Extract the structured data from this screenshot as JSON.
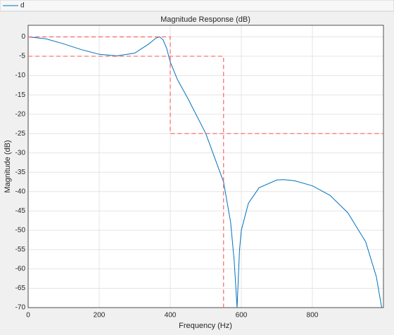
{
  "chart_data": {
    "type": "line",
    "title": "Magnitude Response (dB)",
    "x_label": "Frequency (Hz)",
    "y_label": "Magnitude (dB)",
    "series": [
      {
        "name": "d",
        "color": "#0072bd",
        "line_style": "solid",
        "x": [
          0,
          50,
          100,
          150,
          200,
          250,
          300,
          340,
          360,
          370,
          380,
          390,
          400,
          420,
          450,
          500,
          550,
          570,
          580,
          588,
          595,
          600,
          620,
          650,
          700,
          720,
          750,
          800,
          850,
          900,
          950,
          980,
          995
        ],
        "values": [
          0,
          -0.5,
          -1.8,
          -3.3,
          -4.5,
          -4.9,
          -4.2,
          -1.8,
          -0.3,
          0,
          -0.8,
          -3,
          -6.5,
          -11,
          -16,
          -25,
          -37.5,
          -48,
          -58,
          -70,
          -55,
          -50,
          -43,
          -39,
          -37,
          -36.9,
          -37.2,
          -38.5,
          -41,
          -45.5,
          -53,
          -62,
          -70
        ]
      },
      {
        "color": "#ff6464",
        "line_style": "dashed",
        "x": [
          0,
          400,
          400,
          1000
        ],
        "values": [
          0,
          0,
          -25,
          -25
        ]
      },
      {
        "color": "#ff6464",
        "line_style": "dashed",
        "x": [
          0,
          550,
          550
        ],
        "values": [
          -5,
          -5,
          -70
        ]
      }
    ],
    "xlim": [
      0,
      1000
    ],
    "ylim": [
      -70,
      3
    ],
    "xticks": [
      0,
      200,
      400,
      600,
      800
    ],
    "yticks": [
      0,
      -5,
      -10,
      -15,
      -20,
      -25,
      -30,
      -35,
      -40,
      -45,
      -50,
      -55,
      -60,
      -65,
      -70
    ],
    "grid": true
  }
}
